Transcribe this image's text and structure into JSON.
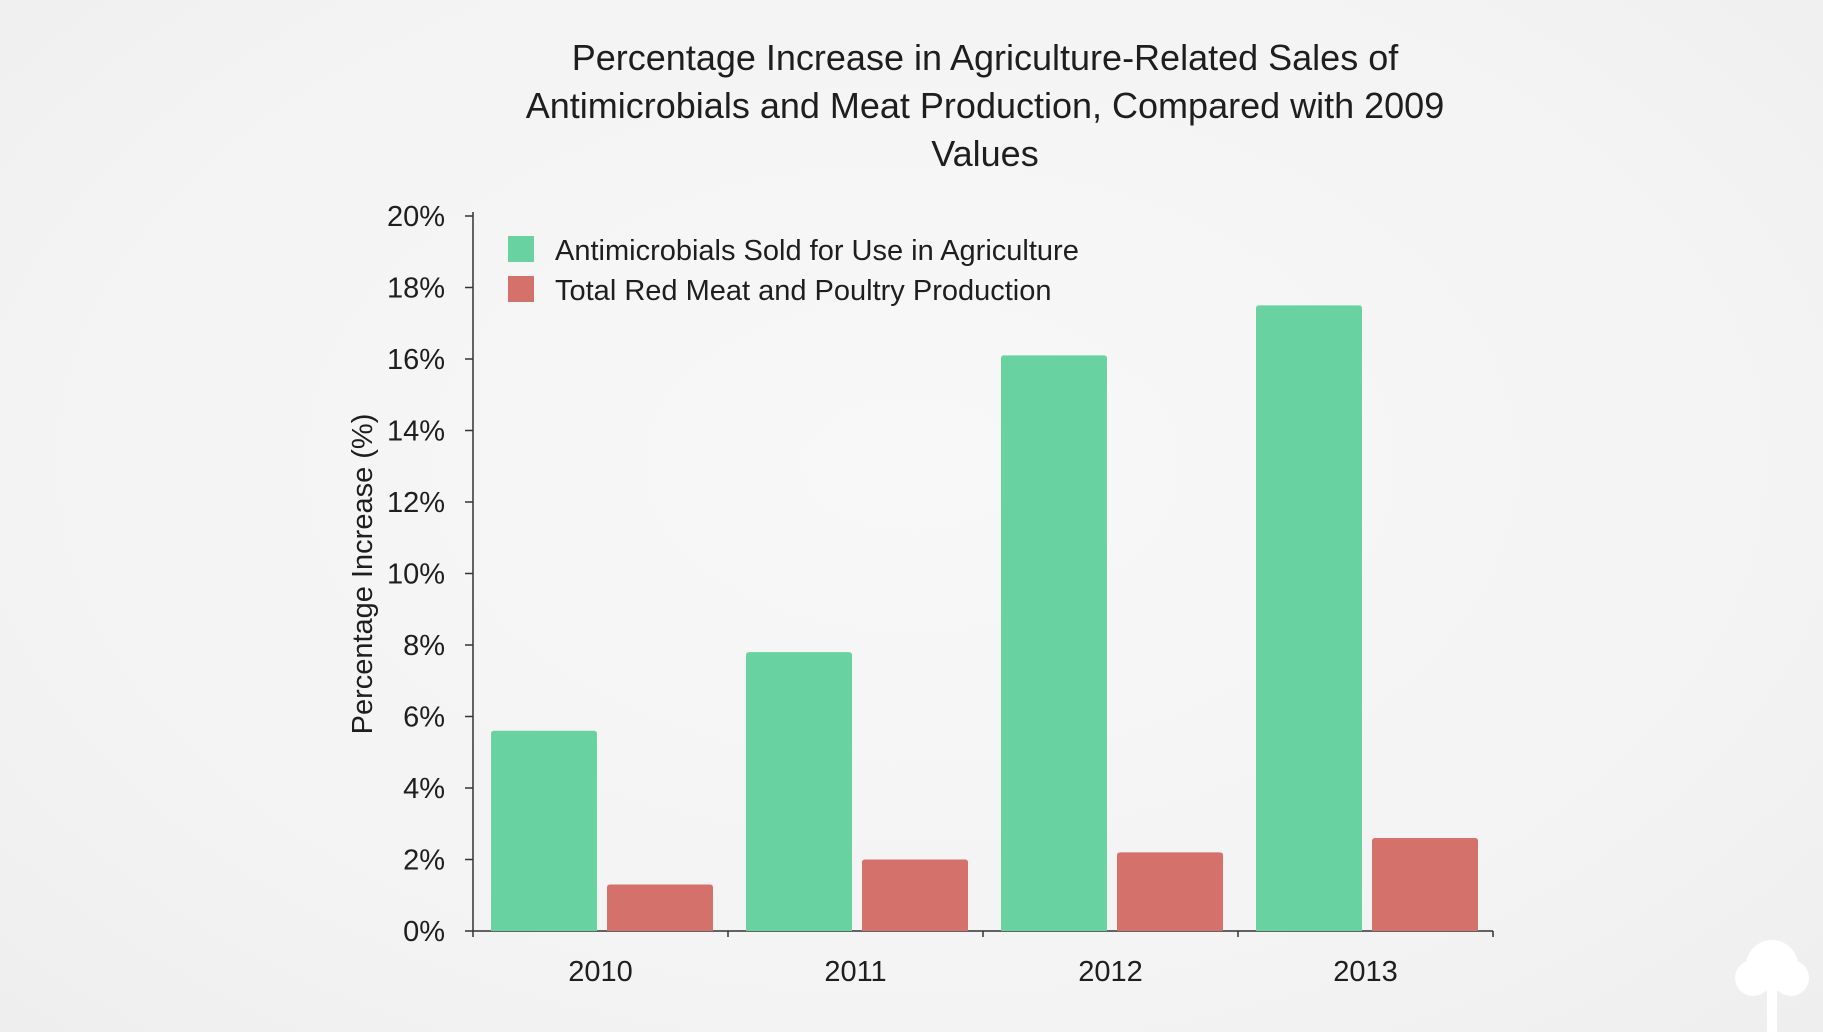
{
  "chart_data": {
    "type": "bar",
    "title": "Percentage Increase in Agriculture-Related Sales of Antimicrobials and Meat Production, Compared with 2009 Values",
    "xlabel": "",
    "ylabel": "Percentage Increase (%)",
    "categories": [
      "2010",
      "2011",
      "2012",
      "2013"
    ],
    "series": [
      {
        "name": "Antimicrobials Sold for Use in Agriculture",
        "color": "#68d3a0",
        "values": [
          5.6,
          7.8,
          16.1,
          17.5
        ]
      },
      {
        "name": "Total Red Meat and Poultry Production",
        "color": "#d4716a",
        "values": [
          1.3,
          2.0,
          2.2,
          2.6
        ]
      }
    ],
    "ylim": [
      0,
      20
    ],
    "yticks": [
      "0%",
      "2%",
      "4%",
      "6%",
      "8%",
      "10%",
      "12%",
      "14%",
      "16%",
      "18%",
      "20%"
    ],
    "grid": false,
    "legend_position": "top-left"
  },
  "logo": {
    "icon": "tree-icon",
    "color": "#ffffff"
  }
}
